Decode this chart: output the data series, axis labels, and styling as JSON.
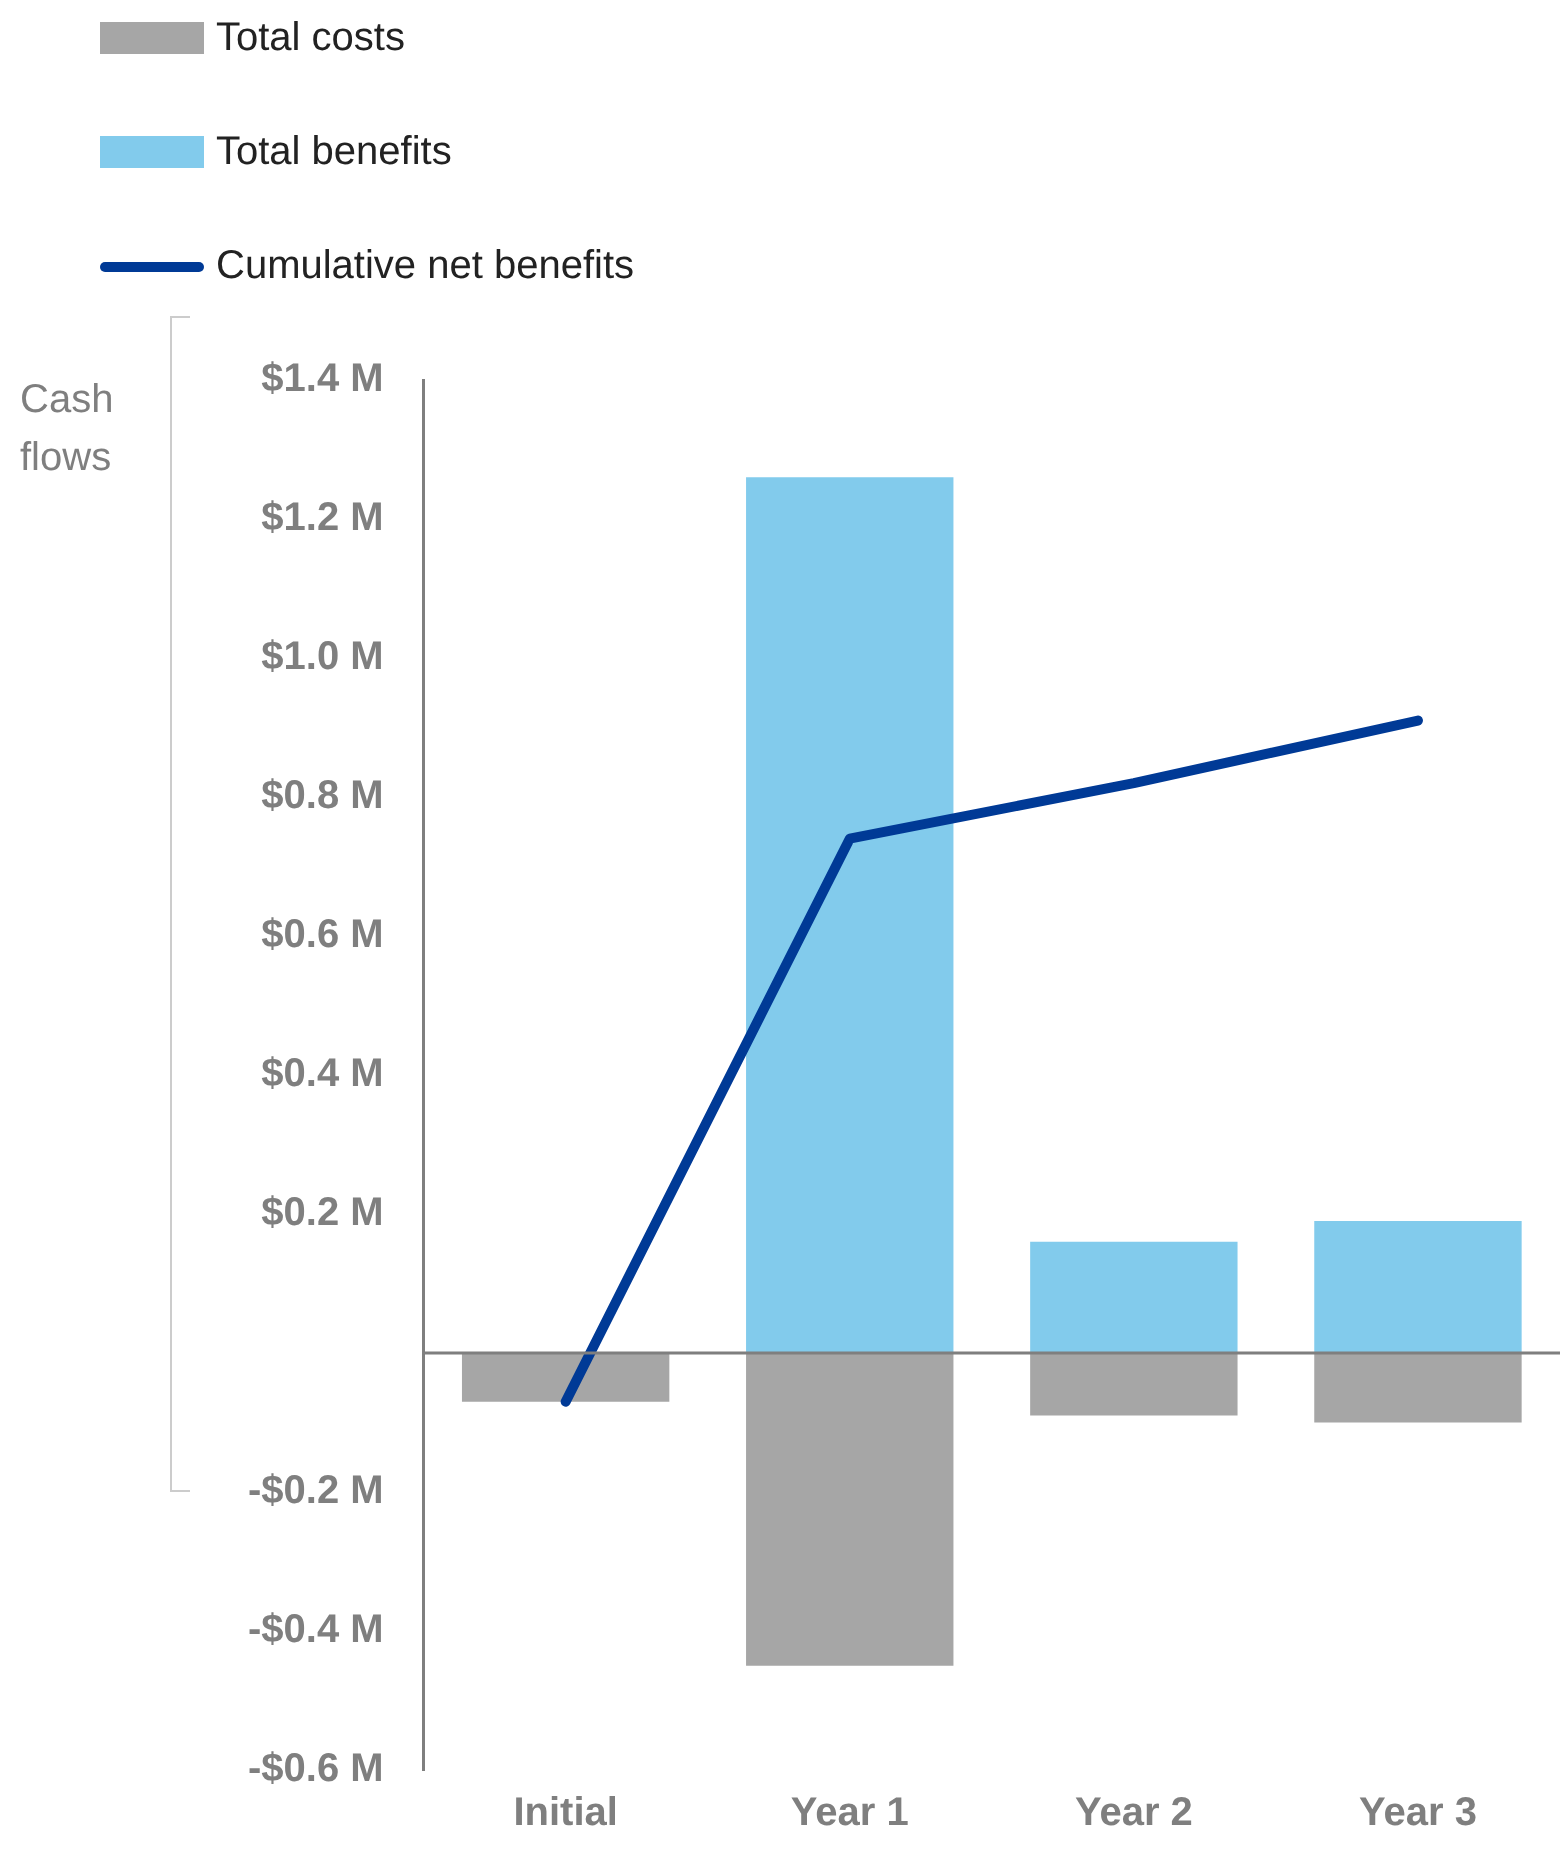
{
  "chart_data": {
    "type": "bar",
    "stacked": true,
    "ylabel": "Cash flows",
    "categories": [
      "Initial",
      "Year 1",
      "Year 2",
      "Year 3"
    ],
    "series": [
      {
        "name": "Total costs",
        "color": "#a6a6a6",
        "values": [
          -0.07,
          -0.45,
          -0.09,
          -0.1
        ]
      },
      {
        "name": "Total benefits",
        "color": "#82cbec",
        "values": [
          0,
          1.26,
          0.16,
          0.19
        ]
      },
      {
        "name": "Cumulative net benefits",
        "type": "line",
        "color": "#003a96",
        "values": [
          -0.07,
          0.74,
          0.82,
          0.91
        ]
      }
    ],
    "ylim": [
      -0.6,
      1.4
    ],
    "yticks": [
      {
        "value": -0.6,
        "label": "-$0.6 M"
      },
      {
        "value": -0.4,
        "label": "-$0.4 M"
      },
      {
        "value": -0.2,
        "label": "-$0.2 M"
      },
      {
        "value": 0.2,
        "label": "$0.2 M"
      },
      {
        "value": 0.4,
        "label": "$0.4 M"
      },
      {
        "value": 0.6,
        "label": "$0.6 M"
      },
      {
        "value": 0.8,
        "label": "$0.8 M"
      },
      {
        "value": 1.0,
        "label": "$1.0 M"
      },
      {
        "value": 1.2,
        "label": "$1.2 M"
      },
      {
        "value": 1.4,
        "label": "$1.4 M"
      }
    ],
    "legend": "top left",
    "grid": false,
    "marker": "none"
  }
}
